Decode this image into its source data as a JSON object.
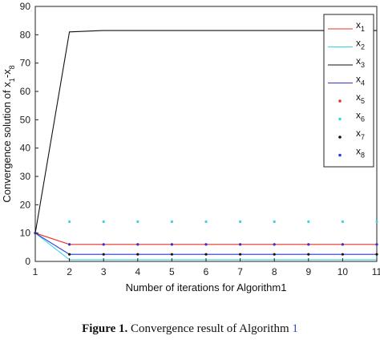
{
  "chart_data": {
    "type": "line",
    "title": "",
    "xlabel": "Number of iterations for Algorithm1",
    "ylabel": "Convergence solution of x",
    "ylabel_sub_start": "1",
    "ylabel_mid": "-x",
    "ylabel_sub_end": "8",
    "xlim": [
      1,
      11
    ],
    "ylim": [
      0,
      90
    ],
    "xticks": [
      1,
      2,
      3,
      4,
      5,
      6,
      7,
      8,
      9,
      10,
      11
    ],
    "yticks": [
      0,
      10,
      20,
      30,
      40,
      50,
      60,
      70,
      80,
      90
    ],
    "x": [
      1,
      2,
      3,
      4,
      5,
      6,
      7,
      8,
      9,
      10,
      11
    ],
    "legend_position": "top-right",
    "grid": false,
    "series": [
      {
        "name": "x",
        "sub": "1",
        "style": "line",
        "color": "#e8302b",
        "values": [
          10,
          6,
          6,
          6,
          6,
          6,
          6,
          6,
          6,
          6,
          6
        ]
      },
      {
        "name": "x",
        "sub": "2",
        "style": "line",
        "color": "#33d6e8",
        "values": [
          10,
          0.6,
          0.6,
          0.6,
          0.6,
          0.6,
          0.6,
          0.6,
          0.6,
          0.6,
          0.6
        ]
      },
      {
        "name": "x",
        "sub": "3",
        "style": "line",
        "color": "#111111",
        "values": [
          10,
          81,
          81.5,
          81.5,
          81.5,
          81.5,
          81.5,
          81.5,
          81.5,
          81.5,
          81.5
        ]
      },
      {
        "name": "x",
        "sub": "4",
        "style": "line",
        "color": "#2f35d8",
        "values": [
          10,
          2.5,
          2.5,
          2.5,
          2.5,
          2.5,
          2.5,
          2.5,
          2.5,
          2.5,
          2.5
        ]
      },
      {
        "name": "x",
        "sub": "5",
        "style": "dot",
        "color": "#e8302b",
        "values": [
          10,
          6,
          6,
          6,
          6,
          6,
          6,
          6,
          6,
          6,
          6
        ]
      },
      {
        "name": "x",
        "sub": "6",
        "style": "dot",
        "color": "#33d6e8",
        "values": [
          10,
          14,
          14,
          14,
          14,
          14,
          14,
          14,
          14,
          14,
          14
        ]
      },
      {
        "name": "x",
        "sub": "7",
        "style": "dot",
        "color": "#111111",
        "values": [
          10,
          2.5,
          2.5,
          2.5,
          2.5,
          2.5,
          2.5,
          2.5,
          2.5,
          2.5,
          2.5
        ]
      },
      {
        "name": "x",
        "sub": "8",
        "style": "dot",
        "color": "#2f35d8",
        "values": [
          10,
          6,
          6,
          6,
          6,
          6,
          6,
          6,
          6,
          6,
          6
        ]
      }
    ]
  },
  "caption": {
    "label": "Figure 1.",
    "text": " Convergence result of Algorithm ",
    "ref": "1"
  }
}
